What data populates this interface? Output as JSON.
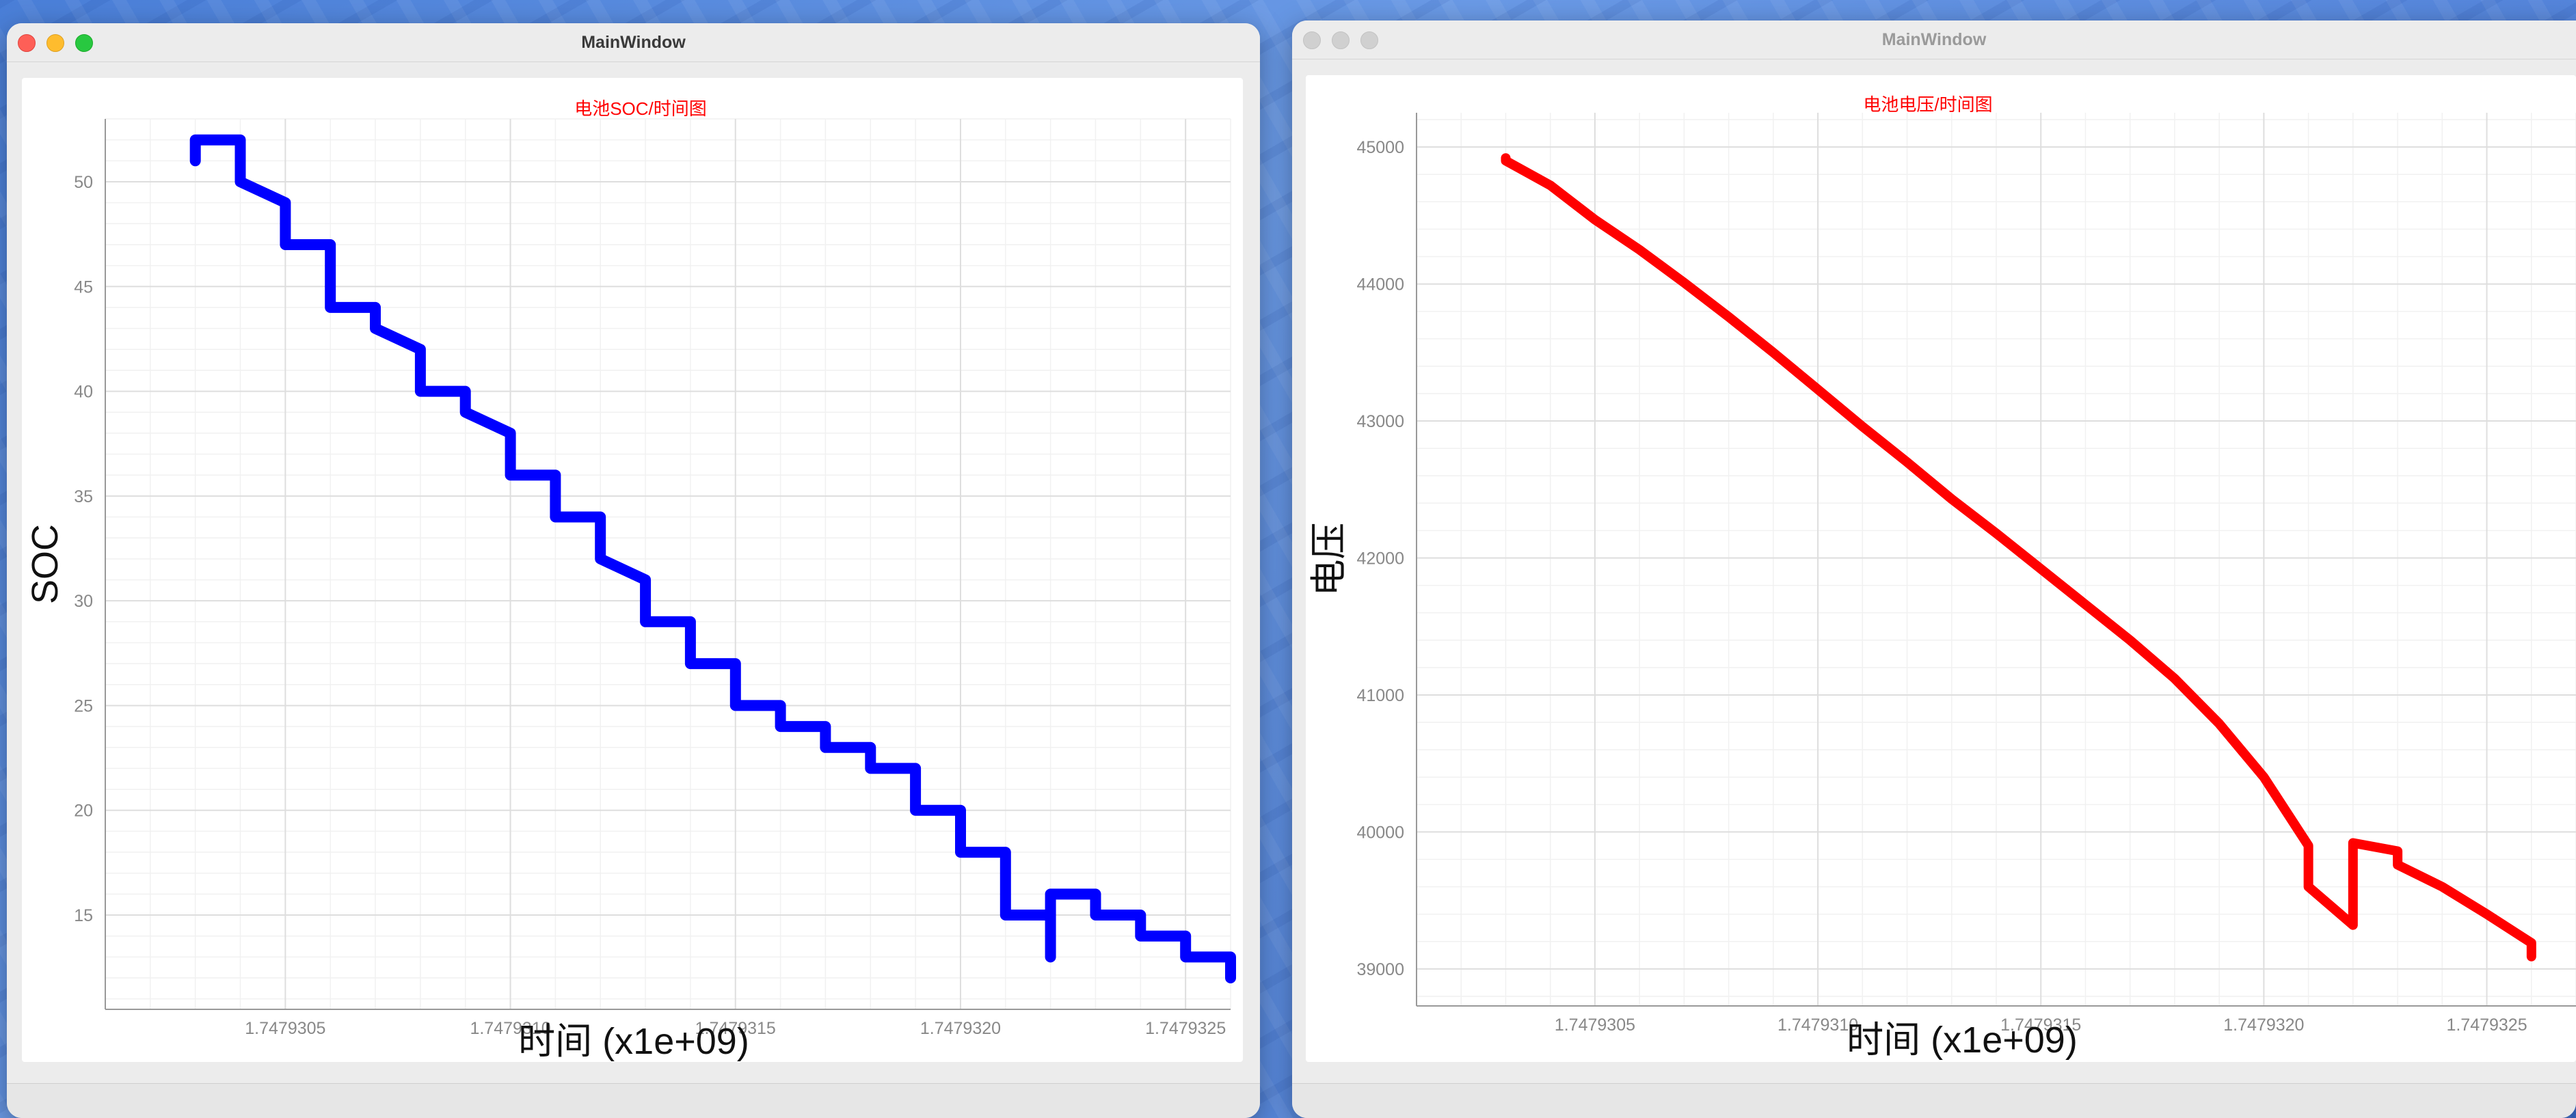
{
  "windows": [
    {
      "title": "MainWindow"
    },
    {
      "title": "MainWindow"
    }
  ],
  "colors": {
    "soc_series": "#0000ff",
    "voltage_series": "#ff0000",
    "chart_title": "#ff0000"
  },
  "chart_data": [
    {
      "type": "line",
      "title": "电池SOC/时间图",
      "xlabel": "时间 (x1e+09)",
      "ylabel": "SOC",
      "xlim": [
        1.7479301,
        1.7479326
      ],
      "ylim": [
        10.5,
        53
      ],
      "xticks": [
        1.7479305,
        1.747931,
        1.7479315,
        1.747932,
        1.7479325
      ],
      "xtick_labels": [
        "1.7479305",
        "1.7479310",
        "1.7479315",
        "1.7479320",
        "1.7479325"
      ],
      "yticks": [
        15,
        20,
        25,
        30,
        35,
        40,
        45,
        50
      ],
      "ytick_labels": [
        "15",
        "20",
        "25",
        "30",
        "35",
        "40",
        "45",
        "50"
      ],
      "grid": true,
      "series": [
        {
          "color": "#0000ff",
          "points": [
            [
              1.7479303,
              51
            ],
            [
              1.7479303,
              52
            ],
            [
              1.7479304,
              52
            ],
            [
              1.7479304,
              50
            ],
            [
              1.7479304,
              50
            ],
            [
              1.7479305,
              49
            ],
            [
              1.7479305,
              48
            ],
            [
              1.7479305,
              48
            ],
            [
              1.7479305,
              47
            ],
            [
              1.7479306,
              47
            ],
            [
              1.7479306,
              46
            ],
            [
              1.7479306,
              45
            ],
            [
              1.7479306,
              45
            ],
            [
              1.7479306,
              44
            ],
            [
              1.7479307,
              44
            ],
            [
              1.7479307,
              43
            ],
            [
              1.7479307,
              43
            ],
            [
              1.7479308,
              42
            ],
            [
              1.7479308,
              42
            ],
            [
              1.7479308,
              41
            ],
            [
              1.7479308,
              40
            ],
            [
              1.7479308,
              40
            ],
            [
              1.7479309,
              40
            ],
            [
              1.7479309,
              39
            ],
            [
              1.7479309,
              39
            ],
            [
              1.747931,
              38
            ],
            [
              1.747931,
              38
            ],
            [
              1.747931,
              37
            ],
            [
              1.747931,
              37
            ],
            [
              1.747931,
              36
            ],
            [
              1.7479311,
              36
            ],
            [
              1.7479311,
              35
            ],
            [
              1.7479311,
              35
            ],
            [
              1.7479311,
              34
            ],
            [
              1.7479312,
              34
            ],
            [
              1.7479312,
              33
            ],
            [
              1.7479312,
              33
            ],
            [
              1.7479312,
              32
            ],
            [
              1.7479312,
              32
            ],
            [
              1.7479313,
              31
            ],
            [
              1.7479313,
              31
            ],
            [
              1.7479313,
              30
            ],
            [
              1.7479313,
              30
            ],
            [
              1.7479313,
              29
            ],
            [
              1.7479314,
              29
            ],
            [
              1.7479314,
              28
            ],
            [
              1.7479314,
              28
            ],
            [
              1.7479314,
              27
            ],
            [
              1.7479315,
              27
            ],
            [
              1.7479315,
              26
            ],
            [
              1.7479315,
              26
            ],
            [
              1.7479315,
              25
            ],
            [
              1.7479316,
              25
            ],
            [
              1.7479316,
              24
            ],
            [
              1.7479317,
              24
            ],
            [
              1.7479317,
              23
            ],
            [
              1.7479318,
              23
            ],
            [
              1.7479318,
              22
            ],
            [
              1.7479319,
              22
            ],
            [
              1.7479319,
              21
            ],
            [
              1.7479319,
              21
            ],
            [
              1.7479319,
              20
            ],
            [
              1.747932,
              20
            ],
            [
              1.747932,
              19
            ],
            [
              1.747932,
              19
            ],
            [
              1.747932,
              18
            ],
            [
              1.7479321,
              18
            ],
            [
              1.7479321,
              17
            ],
            [
              1.7479321,
              17
            ],
            [
              1.7479321,
              16
            ],
            [
              1.7479321,
              16
            ],
            [
              1.7479321,
              15
            ],
            [
              1.7479322,
              15
            ],
            [
              1.7479322,
              14
            ],
            [
              1.7479322,
              13
            ],
            [
              1.7479322,
              13
            ],
            [
              1.7479322,
              16
            ],
            [
              1.7479323,
              16
            ],
            [
              1.7479323,
              16
            ],
            [
              1.7479323,
              15
            ],
            [
              1.7479324,
              15
            ],
            [
              1.7479324,
              14
            ],
            [
              1.7479325,
              14
            ],
            [
              1.7479325,
              13
            ],
            [
              1.7479326,
              13
            ],
            [
              1.7479326,
              12
            ],
            [
              1.7479326,
              12
            ]
          ]
        }
      ]
    },
    {
      "type": "line",
      "title": "电池电压/时间图",
      "xlabel": "时间 (x1e+09)",
      "ylabel": "电压",
      "xlim": [
        1.7479301,
        1.7479327
      ],
      "ylim": [
        38730,
        45250
      ],
      "xticks": [
        1.7479305,
        1.747931,
        1.7479315,
        1.747932,
        1.7479325
      ],
      "xtick_labels": [
        "1.7479305",
        "1.7479310",
        "1.7479315",
        "1.7479320",
        "1.7479325"
      ],
      "yticks": [
        39000,
        40000,
        41000,
        42000,
        43000,
        44000,
        45000
      ],
      "ytick_labels": [
        "39000",
        "40000",
        "41000",
        "42000",
        "43000",
        "44000",
        "45000"
      ],
      "grid": true,
      "series": [
        {
          "color": "#ff0000",
          "points": [
            [
              1.7479303,
              44920
            ],
            [
              1.7479303,
              44900
            ],
            [
              1.7479304,
              44720
            ],
            [
              1.7479305,
              44470
            ],
            [
              1.7479306,
              44250
            ],
            [
              1.7479307,
              44010
            ],
            [
              1.7479308,
              43760
            ],
            [
              1.7479309,
              43500
            ],
            [
              1.747931,
              43230
            ],
            [
              1.7479311,
              42960
            ],
            [
              1.7479312,
              42700
            ],
            [
              1.7479313,
              42430
            ],
            [
              1.7479314,
              42180
            ],
            [
              1.7479315,
              41920
            ],
            [
              1.7479316,
              41660
            ],
            [
              1.7479317,
              41400
            ],
            [
              1.7479318,
              41120
            ],
            [
              1.7479319,
              40790
            ],
            [
              1.747932,
              40400
            ],
            [
              1.7479321,
              39900
            ],
            [
              1.7479321,
              39600
            ],
            [
              1.7479322,
              39320
            ],
            [
              1.7479322,
              39780
            ],
            [
              1.7479322,
              39910
            ],
            [
              1.7479322,
              39920
            ],
            [
              1.7479323,
              39860
            ],
            [
              1.7479323,
              39760
            ],
            [
              1.7479324,
              39600
            ],
            [
              1.7479325,
              39400
            ],
            [
              1.7479326,
              39190
            ],
            [
              1.7479326,
              39090
            ]
          ]
        }
      ]
    }
  ]
}
